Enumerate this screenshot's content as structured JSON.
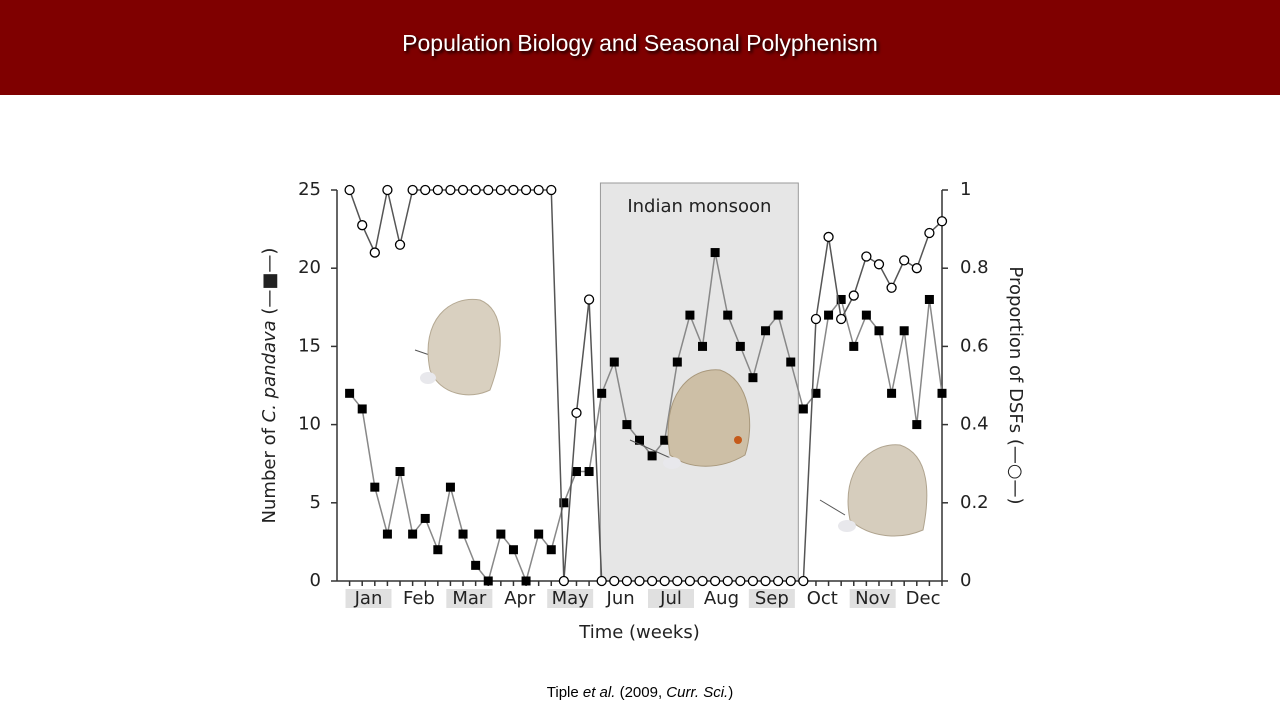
{
  "header": {
    "title": "Population Biology and Seasonal Polyphenism"
  },
  "chart_data": {
    "type": "line",
    "x": [
      1,
      2,
      3,
      4,
      5,
      6,
      7,
      8,
      9,
      10,
      11,
      12,
      13,
      14,
      15,
      16,
      17,
      18,
      19,
      20,
      21,
      22,
      23,
      24,
      25,
      26,
      27,
      28,
      29,
      30,
      31,
      32,
      33,
      34,
      35,
      36,
      37,
      38,
      39,
      40,
      41,
      42,
      43,
      44,
      45,
      46,
      47,
      48
    ],
    "xlim": [
      0,
      48
    ],
    "xticks": [
      {
        "value": 2.5,
        "label": "Jan"
      },
      {
        "value": 6.5,
        "label": "Feb"
      },
      {
        "value": 10.5,
        "label": "Mar"
      },
      {
        "value": 14.5,
        "label": "Apr"
      },
      {
        "value": 18.5,
        "label": "May"
      },
      {
        "value": 22.5,
        "label": "Jun"
      },
      {
        "value": 26.5,
        "label": "Jul"
      },
      {
        "value": 30.5,
        "label": "Aug"
      },
      {
        "value": 34.5,
        "label": "Sep"
      },
      {
        "value": 38.5,
        "label": "Oct"
      },
      {
        "value": 42.5,
        "label": "Nov"
      },
      {
        "value": 46.5,
        "label": "Dec"
      }
    ],
    "x_label": "Time (weeks)",
    "y_label": [
      "Number of ",
      "C. pandava",
      " (—■—)"
    ],
    "y2_label": [
      "Proportion of DSFs (—○—)"
    ],
    "ylim": [
      0,
      25
    ],
    "yticks": [
      0,
      5,
      10,
      15,
      20,
      25
    ],
    "y2lim": [
      0,
      1
    ],
    "y2ticks": [
      0,
      0.2,
      0.4,
      0.6,
      0.8,
      1
    ],
    "annotation": {
      "text": "Indian monsoon",
      "span": [
        20.9,
        36.6
      ]
    },
    "series": [
      {
        "name": "Number of C. pandava",
        "color": "#000000",
        "marker": "square",
        "values": [
          12,
          11,
          6,
          3,
          7,
          3,
          4,
          2,
          6,
          3,
          1,
          0,
          3,
          2,
          0,
          3,
          2,
          5,
          7,
          7,
          12,
          14,
          10,
          9,
          8,
          9,
          14,
          17,
          15,
          21,
          17,
          15,
          13,
          16,
          17,
          14,
          11,
          12,
          17,
          18,
          15,
          17,
          16,
          12,
          16,
          10,
          18,
          12
        ]
      },
      {
        "name": "Proportion of DSFs",
        "color": "#000000",
        "marker": "circle",
        "axis": "y2",
        "values": [
          1,
          0.91,
          0.84,
          1,
          0.86,
          1,
          1,
          1,
          1,
          1,
          1,
          1,
          1,
          1,
          1,
          1,
          1,
          0,
          0.43,
          0.72,
          0,
          0,
          0,
          0,
          0,
          0,
          0,
          0,
          0,
          0,
          0,
          0,
          0,
          0,
          0,
          0,
          0,
          0.67,
          0.88,
          0.67,
          0.73,
          0.83,
          0.81,
          0.75,
          0.82,
          0.8,
          0.89,
          0.92
        ]
      }
    ]
  },
  "citation": [
    "Tiple ",
    "et al.",
    " (2009, ",
    "Curr. Sci.",
    ")"
  ]
}
